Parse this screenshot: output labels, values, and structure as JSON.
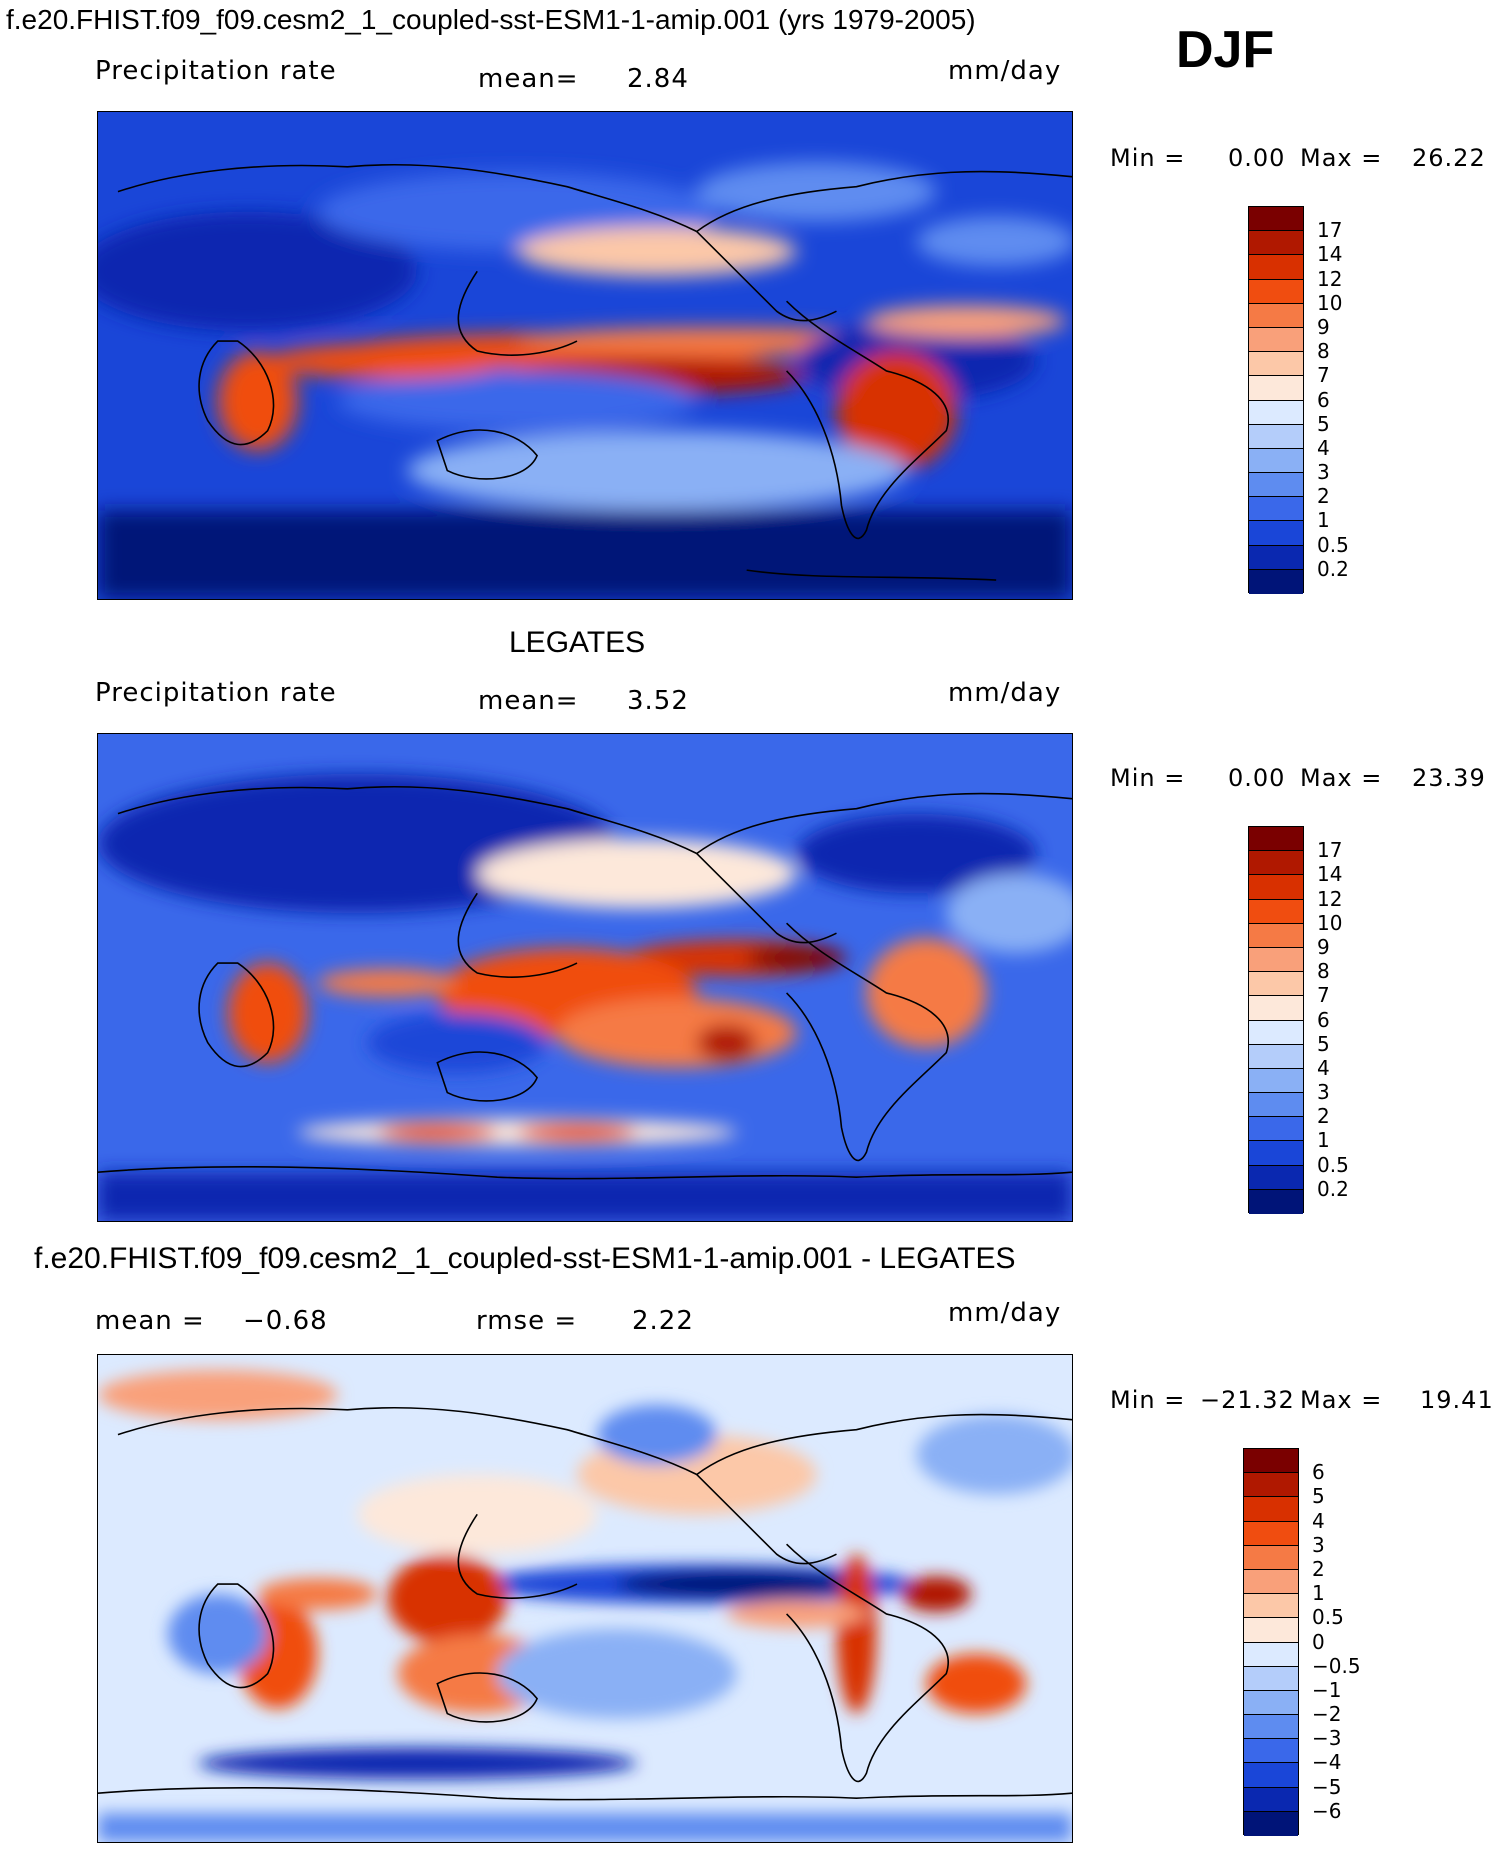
{
  "header": {
    "title": "f.e20.FHIST.f09_f09.cesm2_1_coupled-sst-ESM1-1-amip.001 (yrs 1979-2005)",
    "season": "DJF"
  },
  "panels": [
    {
      "var_label": "Precipitation rate",
      "stat1_label": "mean=",
      "stat1_value": "2.84",
      "units": "mm/day",
      "min_label": "Min =",
      "min_value": "0.00",
      "max_label": "Max =",
      "max_value": "26.22",
      "levels": [
        "17",
        "14",
        "12",
        "10",
        "9",
        "8",
        "7",
        "6",
        "5",
        "4",
        "3",
        "2",
        "1",
        "0.5",
        "0.2"
      ]
    },
    {
      "title": "LEGATES",
      "var_label": "Precipitation rate",
      "stat1_label": "mean=",
      "stat1_value": "3.52",
      "units": "mm/day",
      "min_label": "Min =",
      "min_value": "0.00",
      "max_label": "Max =",
      "max_value": "23.39",
      "levels": [
        "17",
        "14",
        "12",
        "10",
        "9",
        "8",
        "7",
        "6",
        "5",
        "4",
        "3",
        "2",
        "1",
        "0.5",
        "0.2"
      ]
    },
    {
      "title": "f.e20.FHIST.f09_f09.cesm2_1_coupled-sst-ESM1-1-amip.001 - LEGATES",
      "stat1_label": "mean =",
      "stat1_value": "−0.68",
      "stat2_label": "rmse =",
      "stat2_value": "2.22",
      "units": "mm/day",
      "min_label": "Min =",
      "min_value": "−21.32",
      "max_label": "Max =",
      "max_value": "19.41",
      "levels": [
        "6",
        "5",
        "4",
        "3",
        "2",
        "1",
        "0.5",
        "0",
        "−0.5",
        "−1",
        "−2",
        "−3",
        "−4",
        "−5",
        "−6"
      ]
    }
  ],
  "colors": {
    "precip_scale": [
      "#7a0000",
      "#b01800",
      "#d83000",
      "#f04d10",
      "#f57a45",
      "#f9a07a",
      "#fcc8a8",
      "#fde8da",
      "#dceaff",
      "#b4cdfa",
      "#8ab0f5",
      "#5e8cf0",
      "#3a68ea",
      "#1a46d8",
      "#0a28b0",
      "#001478"
    ],
    "diff_scale": [
      "#7a0000",
      "#b01800",
      "#d83000",
      "#f04d10",
      "#f57a45",
      "#f9a07a",
      "#fcc8a8",
      "#fde8da",
      "#dceaff",
      "#b4cdfa",
      "#8ab0f5",
      "#5e8cf0",
      "#3a68ea",
      "#1a46d8",
      "#0a28b0",
      "#001478"
    ]
  }
}
